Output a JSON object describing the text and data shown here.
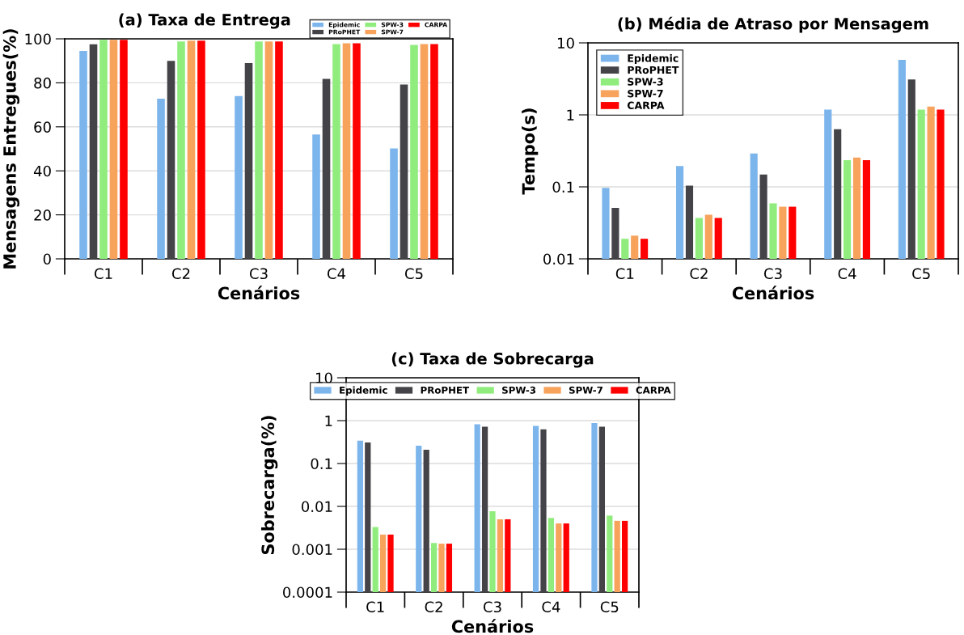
{
  "chart_data": [
    {
      "type": "bar",
      "title": "(a) Taxa de Entrega",
      "xlabel": "Cenários",
      "ylabel": "Mensagens Entregues(%)",
      "categories": [
        "C1",
        "C2",
        "C3",
        "C4",
        "C5"
      ],
      "ylim": [
        0,
        100
      ],
      "yticks": [
        0,
        20,
        40,
        60,
        80,
        100
      ],
      "grid": "y",
      "legend": "top right",
      "series": [
        {
          "name": "Epidemic",
          "color": "#7cb5ec",
          "values": [
            94.5,
            72.8,
            74,
            56.5,
            50.2
          ]
        },
        {
          "name": "PRoPHET",
          "color": "#434348",
          "values": [
            97.5,
            90,
            89,
            81.8,
            79.2
          ]
        },
        {
          "name": "SPW-3",
          "color": "#90ed7d",
          "values": [
            99.5,
            98.8,
            98.8,
            97.6,
            97.2
          ]
        },
        {
          "name": "SPW-7",
          "color": "#f7a35c",
          "values": [
            99.5,
            99.2,
            98.8,
            98,
            97.6
          ]
        },
        {
          "name": "CARPA",
          "color": "#ff0000",
          "values": [
            99.5,
            99.2,
            98.8,
            98,
            97.6
          ]
        }
      ]
    },
    {
      "type": "bar",
      "title": "(b) Média de Atraso por Mensagem",
      "xlabel": "Cenários",
      "ylabel": "Tempo(s)",
      "categories": [
        "C1",
        "C2",
        "C3",
        "C4",
        "C5"
      ],
      "log": "y",
      "ylim": [
        0.01,
        10
      ],
      "yticks": [
        0.01,
        0.1,
        1,
        10
      ],
      "grid": "y",
      "legend": "top left",
      "series": [
        {
          "name": "Epidemic",
          "color": "#7cb5ec",
          "values": [
            0.097,
            0.195,
            0.29,
            1.18,
            5.8
          ]
        },
        {
          "name": "PRoPHET",
          "color": "#434348",
          "values": [
            0.051,
            0.104,
            0.148,
            0.63,
            3.1
          ]
        },
        {
          "name": "SPW-3",
          "color": "#90ed7d",
          "values": [
            0.019,
            0.037,
            0.059,
            0.235,
            1.18
          ]
        },
        {
          "name": "SPW-7",
          "color": "#f7a35c",
          "values": [
            0.021,
            0.041,
            0.053,
            0.255,
            1.3
          ]
        },
        {
          "name": "CARPA",
          "color": "#ff0000",
          "values": [
            0.019,
            0.037,
            0.053,
            0.235,
            1.18
          ]
        }
      ]
    },
    {
      "type": "bar",
      "title": "(c) Taxa de Sobrecarga",
      "xlabel": "Cenários",
      "ylabel": "Sobrecarga(%)",
      "categories": [
        "C1",
        "C2",
        "C3",
        "C4",
        "C5"
      ],
      "log": "y",
      "ylim": [
        0.0001,
        10
      ],
      "yticks": [
        0.0001,
        0.001,
        0.01,
        0.1,
        1,
        10
      ],
      "grid": "y",
      "legend": "top",
      "series": [
        {
          "name": "Epidemic",
          "color": "#7cb5ec",
          "values": [
            0.34,
            0.26,
            0.82,
            0.75,
            0.88
          ]
        },
        {
          "name": "PRoPHET",
          "color": "#434348",
          "values": [
            0.31,
            0.21,
            0.72,
            0.63,
            0.72
          ]
        },
        {
          "name": "SPW-3",
          "color": "#90ed7d",
          "values": [
            0.0033,
            0.0014,
            0.0077,
            0.0054,
            0.0061
          ]
        },
        {
          "name": "SPW-7",
          "color": "#f7a35c",
          "values": [
            0.0022,
            0.00135,
            0.005,
            0.004,
            0.0046
          ]
        },
        {
          "name": "CARPA",
          "color": "#ff0000",
          "values": [
            0.0022,
            0.00135,
            0.005,
            0.004,
            0.0046
          ]
        }
      ]
    }
  ]
}
